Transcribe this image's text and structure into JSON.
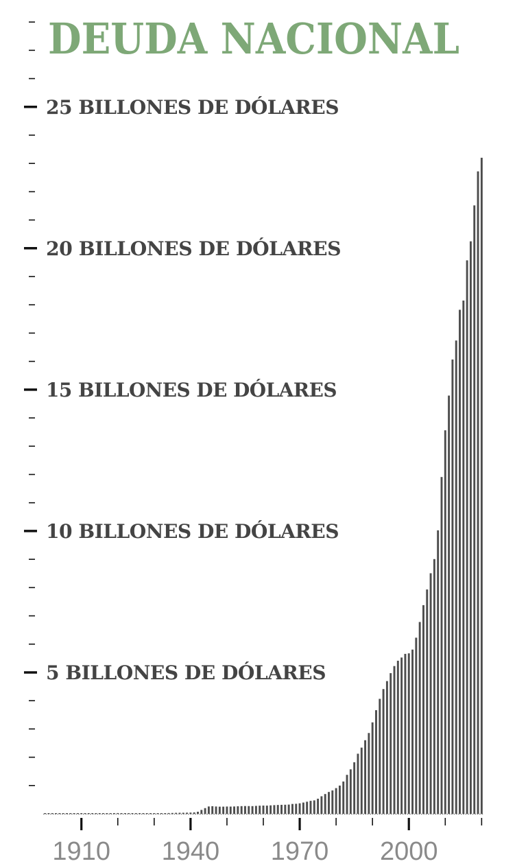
{
  "title": "DEUDA NACIONAL",
  "colors": {
    "title": "#7ea877",
    "bars": "#4d4d4d",
    "labels": "#444444",
    "axis": "#111111",
    "xlabels": "#8a8a8a"
  },
  "chart_data": {
    "type": "bar",
    "title": "DEUDA NACIONAL",
    "xlabel": "",
    "ylabel": "",
    "ylim": [
      0,
      28.1
    ],
    "y_ticks_major": [
      5,
      10,
      15,
      20,
      25
    ],
    "y_tick_labels": [
      "5 BILLONES DE DÓLARES",
      "10 BILLONES DE DÓLARES",
      "15 BILLONES DE DÓLARES",
      "20 BILLONES DE DÓLARES",
      "25 BILLONES DE DÓLARES"
    ],
    "x_tick_labels": [
      "1910",
      "1940",
      "1970",
      "2000"
    ],
    "x_ticks_major": [
      1910,
      1940,
      1970,
      2000
    ],
    "x_range": [
      1900,
      2020
    ],
    "unit": "billones de dólares",
    "grid": false,
    "series": [
      {
        "x_start": 1900,
        "values": [
          0.002,
          0.002,
          0.002,
          0.002,
          0.002,
          0.002,
          0.002,
          0.002,
          0.002,
          0.002,
          0.002,
          0.002,
          0.002,
          0.002,
          0.003,
          0.003,
          0.003,
          0.003,
          0.012,
          0.025,
          0.026,
          0.024,
          0.023,
          0.022,
          0.021,
          0.02,
          0.019,
          0.018,
          0.018,
          0.017,
          0.016,
          0.017,
          0.019,
          0.023,
          0.027,
          0.029,
          0.034,
          0.036,
          0.037,
          0.04,
          0.043,
          0.049,
          0.072,
          0.137,
          0.201,
          0.259,
          0.269,
          0.258,
          0.252,
          0.253,
          0.257,
          0.255,
          0.259,
          0.266,
          0.271,
          0.274,
          0.273,
          0.272,
          0.28,
          0.287,
          0.291,
          0.289,
          0.298,
          0.306,
          0.312,
          0.317,
          0.32,
          0.326,
          0.348,
          0.354,
          0.371,
          0.398,
          0.427,
          0.458,
          0.475,
          0.533,
          0.62,
          0.699,
          0.772,
          0.827,
          0.908,
          0.998,
          1.142,
          1.377,
          1.572,
          1.823,
          2.125,
          2.34,
          2.602,
          2.857,
          3.233,
          3.665,
          4.065,
          4.411,
          4.693,
          4.974,
          5.225,
          5.413,
          5.526,
          5.656,
          5.674,
          5.807,
          6.228,
          6.783,
          7.379,
          7.933,
          8.507,
          9.008,
          10.025,
          11.91,
          13.562,
          14.79,
          16.066,
          16.738,
          17.824,
          18.151,
          19.573,
          20.245,
          21.516,
          22.719,
          23.201
        ]
      }
    ]
  }
}
